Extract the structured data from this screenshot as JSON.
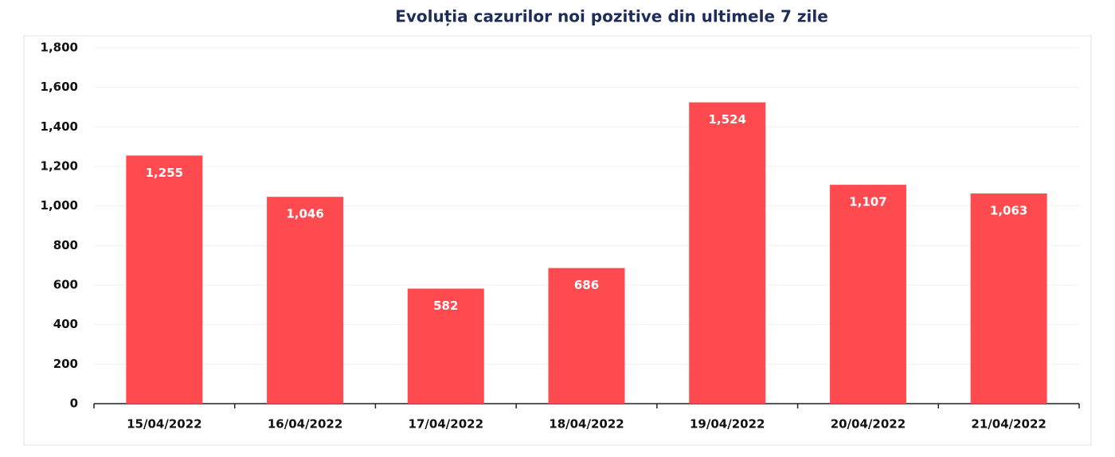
{
  "chart_data": {
    "type": "bar",
    "title": "Evoluția cazurilor noi pozitive din ultimele 7 zile",
    "categories": [
      "15/04/2022",
      "16/04/2022",
      "17/04/2022",
      "18/04/2022",
      "19/04/2022",
      "20/04/2022",
      "21/04/2022"
    ],
    "values": [
      1255,
      1046,
      582,
      686,
      1524,
      1107,
      1063
    ],
    "value_labels": [
      "1,255",
      "1,046",
      "582",
      "686",
      "1,524",
      "1,107",
      "1,063"
    ],
    "color": "#ff4b4f",
    "ylim": [
      0,
      1800
    ],
    "yticks": [
      0,
      200,
      400,
      600,
      800,
      {
        "value": 1000,
        "label": "1,000"
      },
      {
        "value": 1200,
        "label": "1,200"
      },
      {
        "value": 1400,
        "label": "1,400"
      },
      {
        "value": 1600,
        "label": "1,600"
      },
      {
        "value": 1800,
        "label": "1,800"
      }
    ],
    "grid": true
  }
}
